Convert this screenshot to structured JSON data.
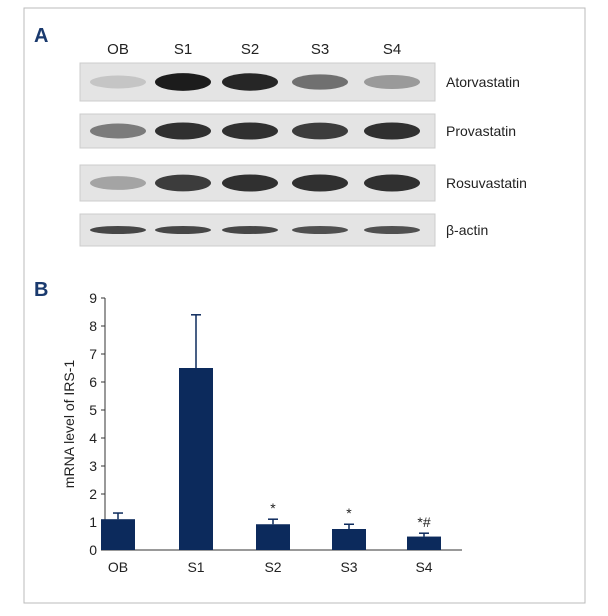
{
  "panel_a": {
    "label": "A",
    "lanes": [
      "OB",
      "S1",
      "S2",
      "S3",
      "S4"
    ],
    "rows": [
      "Atorvastatin",
      "Provastatin",
      "Rosuvastatin",
      "β-actin"
    ]
  },
  "chart_data": {
    "type": "bar",
    "panel_label": "B",
    "y_label": "mRNA level of IRS-1",
    "categories": [
      "OB",
      "S1",
      "S2",
      "S3",
      "S4"
    ],
    "values": [
      1.1,
      6.5,
      0.92,
      0.75,
      0.48
    ],
    "errors": [
      0.22,
      1.9,
      0.18,
      0.17,
      0.12
    ],
    "annotations": [
      null,
      null,
      "*",
      "*",
      "*#"
    ],
    "color": "#0c2a5c",
    "ylim": [
      0,
      9
    ],
    "yticks": [
      0,
      1,
      2,
      3,
      4,
      5,
      6,
      7,
      8,
      9
    ]
  }
}
